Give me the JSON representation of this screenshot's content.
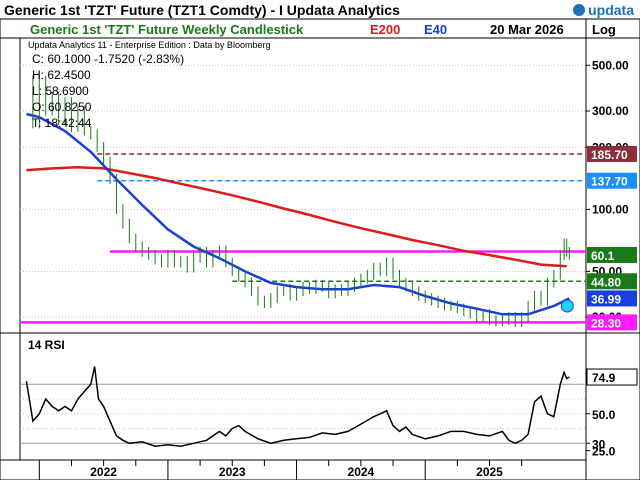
{
  "header": {
    "title": "Generic 1st 'TZT' Future (TZT1 Comdty) - I Updata Analytics",
    "brand": "updata",
    "chart_subtitle": "Generic 1st 'TZT' Future Weekly Candlestick",
    "legend_e200": "E200",
    "legend_e40": "E40",
    "date": "20 Mar 2026",
    "scale_label": "Log",
    "edition": "Updata Analytics 11 - Enterprise Edition : Data by Bloomberg"
  },
  "ohlc": {
    "close": "C: 60.1000  -1.7520 (-2.83%)",
    "high": "H: 62.4500",
    "low": "L: 58.6900",
    "open": "O: 60.8250",
    "time": "T: 18:42:44"
  },
  "colors": {
    "e200": "#e01a1a",
    "e40": "#1a3de0",
    "candles": "#1a7a1a",
    "magenta": "#ff1aff",
    "maroon": "#8b2e3a",
    "lightblue": "#1a8fff",
    "darkgreen": "#1a7a1a"
  },
  "chart_data": [
    {
      "type": "line",
      "name": "price",
      "scale": "log",
      "x_labels": [
        "2022",
        "2023",
        "2024",
        "2025"
      ],
      "y_ticks": [
        "500.00",
        "300.00",
        "200.00",
        "100.00",
        "50.00",
        "30.00"
      ],
      "y_tick_values": [
        500,
        300,
        200,
        100,
        50,
        30
      ],
      "ylim": [
        26,
        620
      ],
      "xlim": [
        2021.85,
        2026.25
      ],
      "price_path": [
        [
          2021.9,
          420
        ],
        [
          2021.95,
          260
        ],
        [
          2022.0,
          420
        ],
        [
          2022.05,
          300
        ],
        [
          2022.1,
          350
        ],
        [
          2022.15,
          270
        ],
        [
          2022.2,
          330
        ],
        [
          2022.25,
          250
        ],
        [
          2022.3,
          300
        ],
        [
          2022.35,
          240
        ],
        [
          2022.4,
          230
        ],
        [
          2022.45,
          200
        ],
        [
          2022.5,
          170
        ],
        [
          2022.55,
          140
        ],
        [
          2022.6,
          100
        ],
        [
          2022.65,
          85
        ],
        [
          2022.7,
          72
        ],
        [
          2022.75,
          66
        ],
        [
          2022.8,
          62
        ],
        [
          2022.85,
          60
        ],
        [
          2022.9,
          57
        ],
        [
          2022.95,
          55
        ],
        [
          2023.0,
          60
        ],
        [
          2023.05,
          55
        ],
        [
          2023.1,
          56
        ],
        [
          2023.15,
          52
        ],
        [
          2023.2,
          58
        ],
        [
          2023.25,
          62
        ],
        [
          2023.3,
          55
        ],
        [
          2023.35,
          60
        ],
        [
          2023.4,
          63
        ],
        [
          2023.45,
          55
        ],
        [
          2023.5,
          50
        ],
        [
          2023.55,
          47
        ],
        [
          2023.6,
          44
        ],
        [
          2023.65,
          40
        ],
        [
          2023.7,
          36
        ],
        [
          2023.75,
          35
        ],
        [
          2023.8,
          37
        ],
        [
          2023.85,
          40
        ],
        [
          2023.9,
          41
        ],
        [
          2023.95,
          38
        ],
        [
          2024.0,
          40
        ],
        [
          2024.05,
          42
        ],
        [
          2024.1,
          41
        ],
        [
          2024.15,
          43
        ],
        [
          2024.2,
          42
        ],
        [
          2024.25,
          39
        ],
        [
          2024.3,
          41
        ],
        [
          2024.35,
          40
        ],
        [
          2024.4,
          42
        ],
        [
          2024.45,
          44
        ],
        [
          2024.5,
          46
        ],
        [
          2024.55,
          48
        ],
        [
          2024.6,
          52
        ],
        [
          2024.65,
          50
        ],
        [
          2024.7,
          55
        ],
        [
          2024.75,
          48
        ],
        [
          2024.8,
          44
        ],
        [
          2024.85,
          42
        ],
        [
          2024.9,
          40
        ],
        [
          2024.95,
          38
        ],
        [
          2025.0,
          37
        ],
        [
          2025.05,
          36
        ],
        [
          2025.1,
          35
        ],
        [
          2025.15,
          34
        ],
        [
          2025.2,
          34
        ],
        [
          2025.25,
          33
        ],
        [
          2025.3,
          32
        ],
        [
          2025.35,
          31
        ],
        [
          2025.4,
          30
        ],
        [
          2025.45,
          31
        ],
        [
          2025.5,
          29
        ],
        [
          2025.55,
          28.5
        ],
        [
          2025.6,
          29
        ],
        [
          2025.65,
          30
        ],
        [
          2025.7,
          28.3
        ],
        [
          2025.75,
          30
        ],
        [
          2025.8,
          34
        ],
        [
          2025.85,
          38
        ],
        [
          2025.9,
          36
        ],
        [
          2025.95,
          44
        ],
        [
          2026.0,
          48
        ],
        [
          2026.05,
          60
        ],
        [
          2026.08,
          68
        ],
        [
          2026.1,
          62
        ],
        [
          2026.12,
          60.1
        ]
      ],
      "series": [
        {
          "name": "E200",
          "points": [
            [
              2021.9,
              155
            ],
            [
              2022.1,
              158
            ],
            [
              2022.3,
              160
            ],
            [
              2022.5,
              158
            ],
            [
              2022.7,
              150
            ],
            [
              2022.9,
              142
            ],
            [
              2023.1,
              133
            ],
            [
              2023.3,
              125
            ],
            [
              2023.5,
              117
            ],
            [
              2023.7,
              109
            ],
            [
              2023.9,
              101
            ],
            [
              2024.1,
              94
            ],
            [
              2024.3,
              87
            ],
            [
              2024.5,
              81
            ],
            [
              2024.7,
              76
            ],
            [
              2024.9,
              71
            ],
            [
              2025.1,
              67
            ],
            [
              2025.3,
              63
            ],
            [
              2025.5,
              60
            ],
            [
              2025.7,
              57
            ],
            [
              2025.9,
              54
            ],
            [
              2026.1,
              53
            ]
          ]
        },
        {
          "name": "E40",
          "points": [
            [
              2021.9,
              290
            ],
            [
              2022.0,
              280
            ],
            [
              2022.2,
              240
            ],
            [
              2022.4,
              190
            ],
            [
              2022.6,
              140
            ],
            [
              2022.8,
              105
            ],
            [
              2023.0,
              80
            ],
            [
              2023.2,
              66
            ],
            [
              2023.4,
              58
            ],
            [
              2023.6,
              50
            ],
            [
              2023.8,
              44
            ],
            [
              2024.0,
              42
            ],
            [
              2024.2,
              41
            ],
            [
              2024.4,
              41
            ],
            [
              2024.6,
              43
            ],
            [
              2024.8,
              42
            ],
            [
              2025.0,
              38
            ],
            [
              2025.2,
              35
            ],
            [
              2025.4,
              33
            ],
            [
              2025.6,
              31
            ],
            [
              2025.8,
              31
            ],
            [
              2026.0,
              34
            ],
            [
              2026.12,
              36.99
            ]
          ]
        }
      ],
      "horizontal_levels": [
        {
          "value": 185.7,
          "label": "185.70",
          "style": "dashed",
          "color": "#8b2e3a"
        },
        {
          "value": 137.7,
          "label": "137.70",
          "style": "dashed",
          "color": "#1a8fff"
        },
        {
          "value": 62.5,
          "label": "",
          "style": "solid",
          "color": "#ff1aff"
        },
        {
          "value": 44.8,
          "label": "44.80",
          "style": "dashed",
          "color": "#1a7a1a"
        },
        {
          "value": 28.3,
          "label": "28.30",
          "style": "solid",
          "color": "#ff1aff"
        }
      ],
      "last_value_labels": [
        {
          "value": 60.1,
          "label": "60.1",
          "color": "#1a7a1a"
        },
        {
          "value": 36.99,
          "label": "36.99",
          "color": "#1a3de0"
        }
      ]
    },
    {
      "type": "line",
      "name": "14 RSI",
      "title": "14 RSI",
      "y_ticks": [
        "74.9",
        "50.0",
        "30",
        "25.0"
      ],
      "y_tick_values": [
        74.9,
        50,
        30,
        25
      ],
      "ylim": [
        20,
        100
      ],
      "levels": [
        70,
        30
      ],
      "points": [
        [
          2021.9,
          72
        ],
        [
          2021.95,
          45
        ],
        [
          2022.0,
          50
        ],
        [
          2022.05,
          60
        ],
        [
          2022.1,
          55
        ],
        [
          2022.15,
          52
        ],
        [
          2022.2,
          55
        ],
        [
          2022.25,
          52
        ],
        [
          2022.3,
          60
        ],
        [
          2022.35,
          65
        ],
        [
          2022.4,
          70
        ],
        [
          2022.43,
          82
        ],
        [
          2022.46,
          60
        ],
        [
          2022.5,
          55
        ],
        [
          2022.55,
          45
        ],
        [
          2022.6,
          35
        ],
        [
          2022.65,
          32
        ],
        [
          2022.7,
          30
        ],
        [
          2022.8,
          31
        ],
        [
          2022.9,
          28
        ],
        [
          2023.0,
          29
        ],
        [
          2023.1,
          28
        ],
        [
          2023.2,
          30
        ],
        [
          2023.3,
          32
        ],
        [
          2023.4,
          38
        ],
        [
          2023.45,
          35
        ],
        [
          2023.5,
          40
        ],
        [
          2023.55,
          42
        ],
        [
          2023.6,
          38
        ],
        [
          2023.7,
          33
        ],
        [
          2023.8,
          30
        ],
        [
          2023.9,
          32
        ],
        [
          2024.0,
          33
        ],
        [
          2024.1,
          34
        ],
        [
          2024.2,
          37
        ],
        [
          2024.3,
          36
        ],
        [
          2024.4,
          38
        ],
        [
          2024.5,
          43
        ],
        [
          2024.6,
          48
        ],
        [
          2024.65,
          50
        ],
        [
          2024.7,
          52
        ],
        [
          2024.75,
          42
        ],
        [
          2024.8,
          38
        ],
        [
          2024.85,
          41
        ],
        [
          2024.9,
          36
        ],
        [
          2025.0,
          33
        ],
        [
          2025.1,
          35
        ],
        [
          2025.2,
          38
        ],
        [
          2025.3,
          38
        ],
        [
          2025.4,
          36
        ],
        [
          2025.5,
          35
        ],
        [
          2025.6,
          38
        ],
        [
          2025.65,
          32
        ],
        [
          2025.7,
          30
        ],
        [
          2025.75,
          32
        ],
        [
          2025.8,
          36
        ],
        [
          2025.85,
          58
        ],
        [
          2025.9,
          62
        ],
        [
          2025.95,
          50
        ],
        [
          2026.0,
          48
        ],
        [
          2026.05,
          70
        ],
        [
          2026.08,
          78
        ],
        [
          2026.1,
          74
        ],
        [
          2026.12,
          74.9
        ]
      ]
    }
  ]
}
